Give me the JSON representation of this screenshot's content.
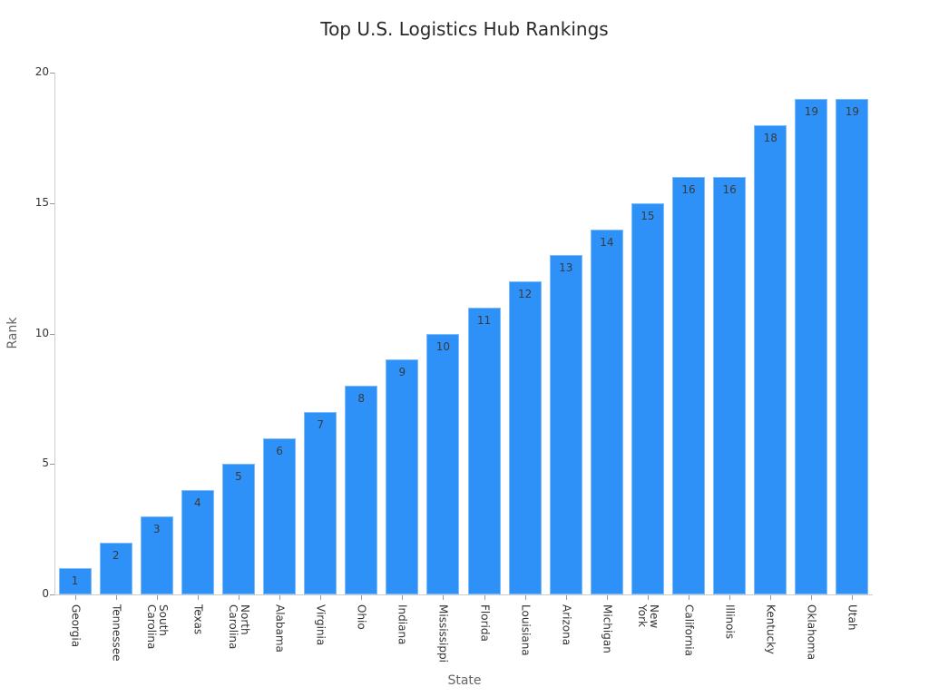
{
  "chart_data": {
    "type": "bar",
    "title": "Top U.S. Logistics Hub Rankings",
    "xlabel": "State",
    "ylabel": "Rank",
    "ylim": [
      0,
      20
    ],
    "yticks": [
      0,
      5,
      10,
      15,
      20
    ],
    "grid": false,
    "legend": null,
    "categories": [
      "Georgia",
      "Tennessee",
      "South Carolina",
      "Texas",
      "North Carolina",
      "Alabama",
      "Virginia",
      "Ohio",
      "Indiana",
      "Mississippi",
      "Florida",
      "Louisiana",
      "Arizona",
      "Michigan",
      "New York",
      "California",
      "Illinois",
      "Kentucky",
      "Oklahoma",
      "Utah"
    ],
    "tick_labels": [
      "Georgia",
      "Tennessee",
      "South\nCarolina",
      "Texas",
      "North\nCarolina",
      "Alabama",
      "Virginia",
      "Ohio",
      "Indiana",
      "Mississippi",
      "Florida",
      "Louisiana",
      "Arizona",
      "Michigan",
      "New\nYork",
      "California",
      "Illinois",
      "Kentucky",
      "Oklahoma",
      "Utah"
    ],
    "values": [
      1,
      2,
      3,
      4,
      5,
      6,
      7,
      8,
      9,
      10,
      11,
      12,
      13,
      14,
      15,
      16,
      16,
      18,
      19,
      19
    ],
    "bar_color": "#2e91f7"
  }
}
